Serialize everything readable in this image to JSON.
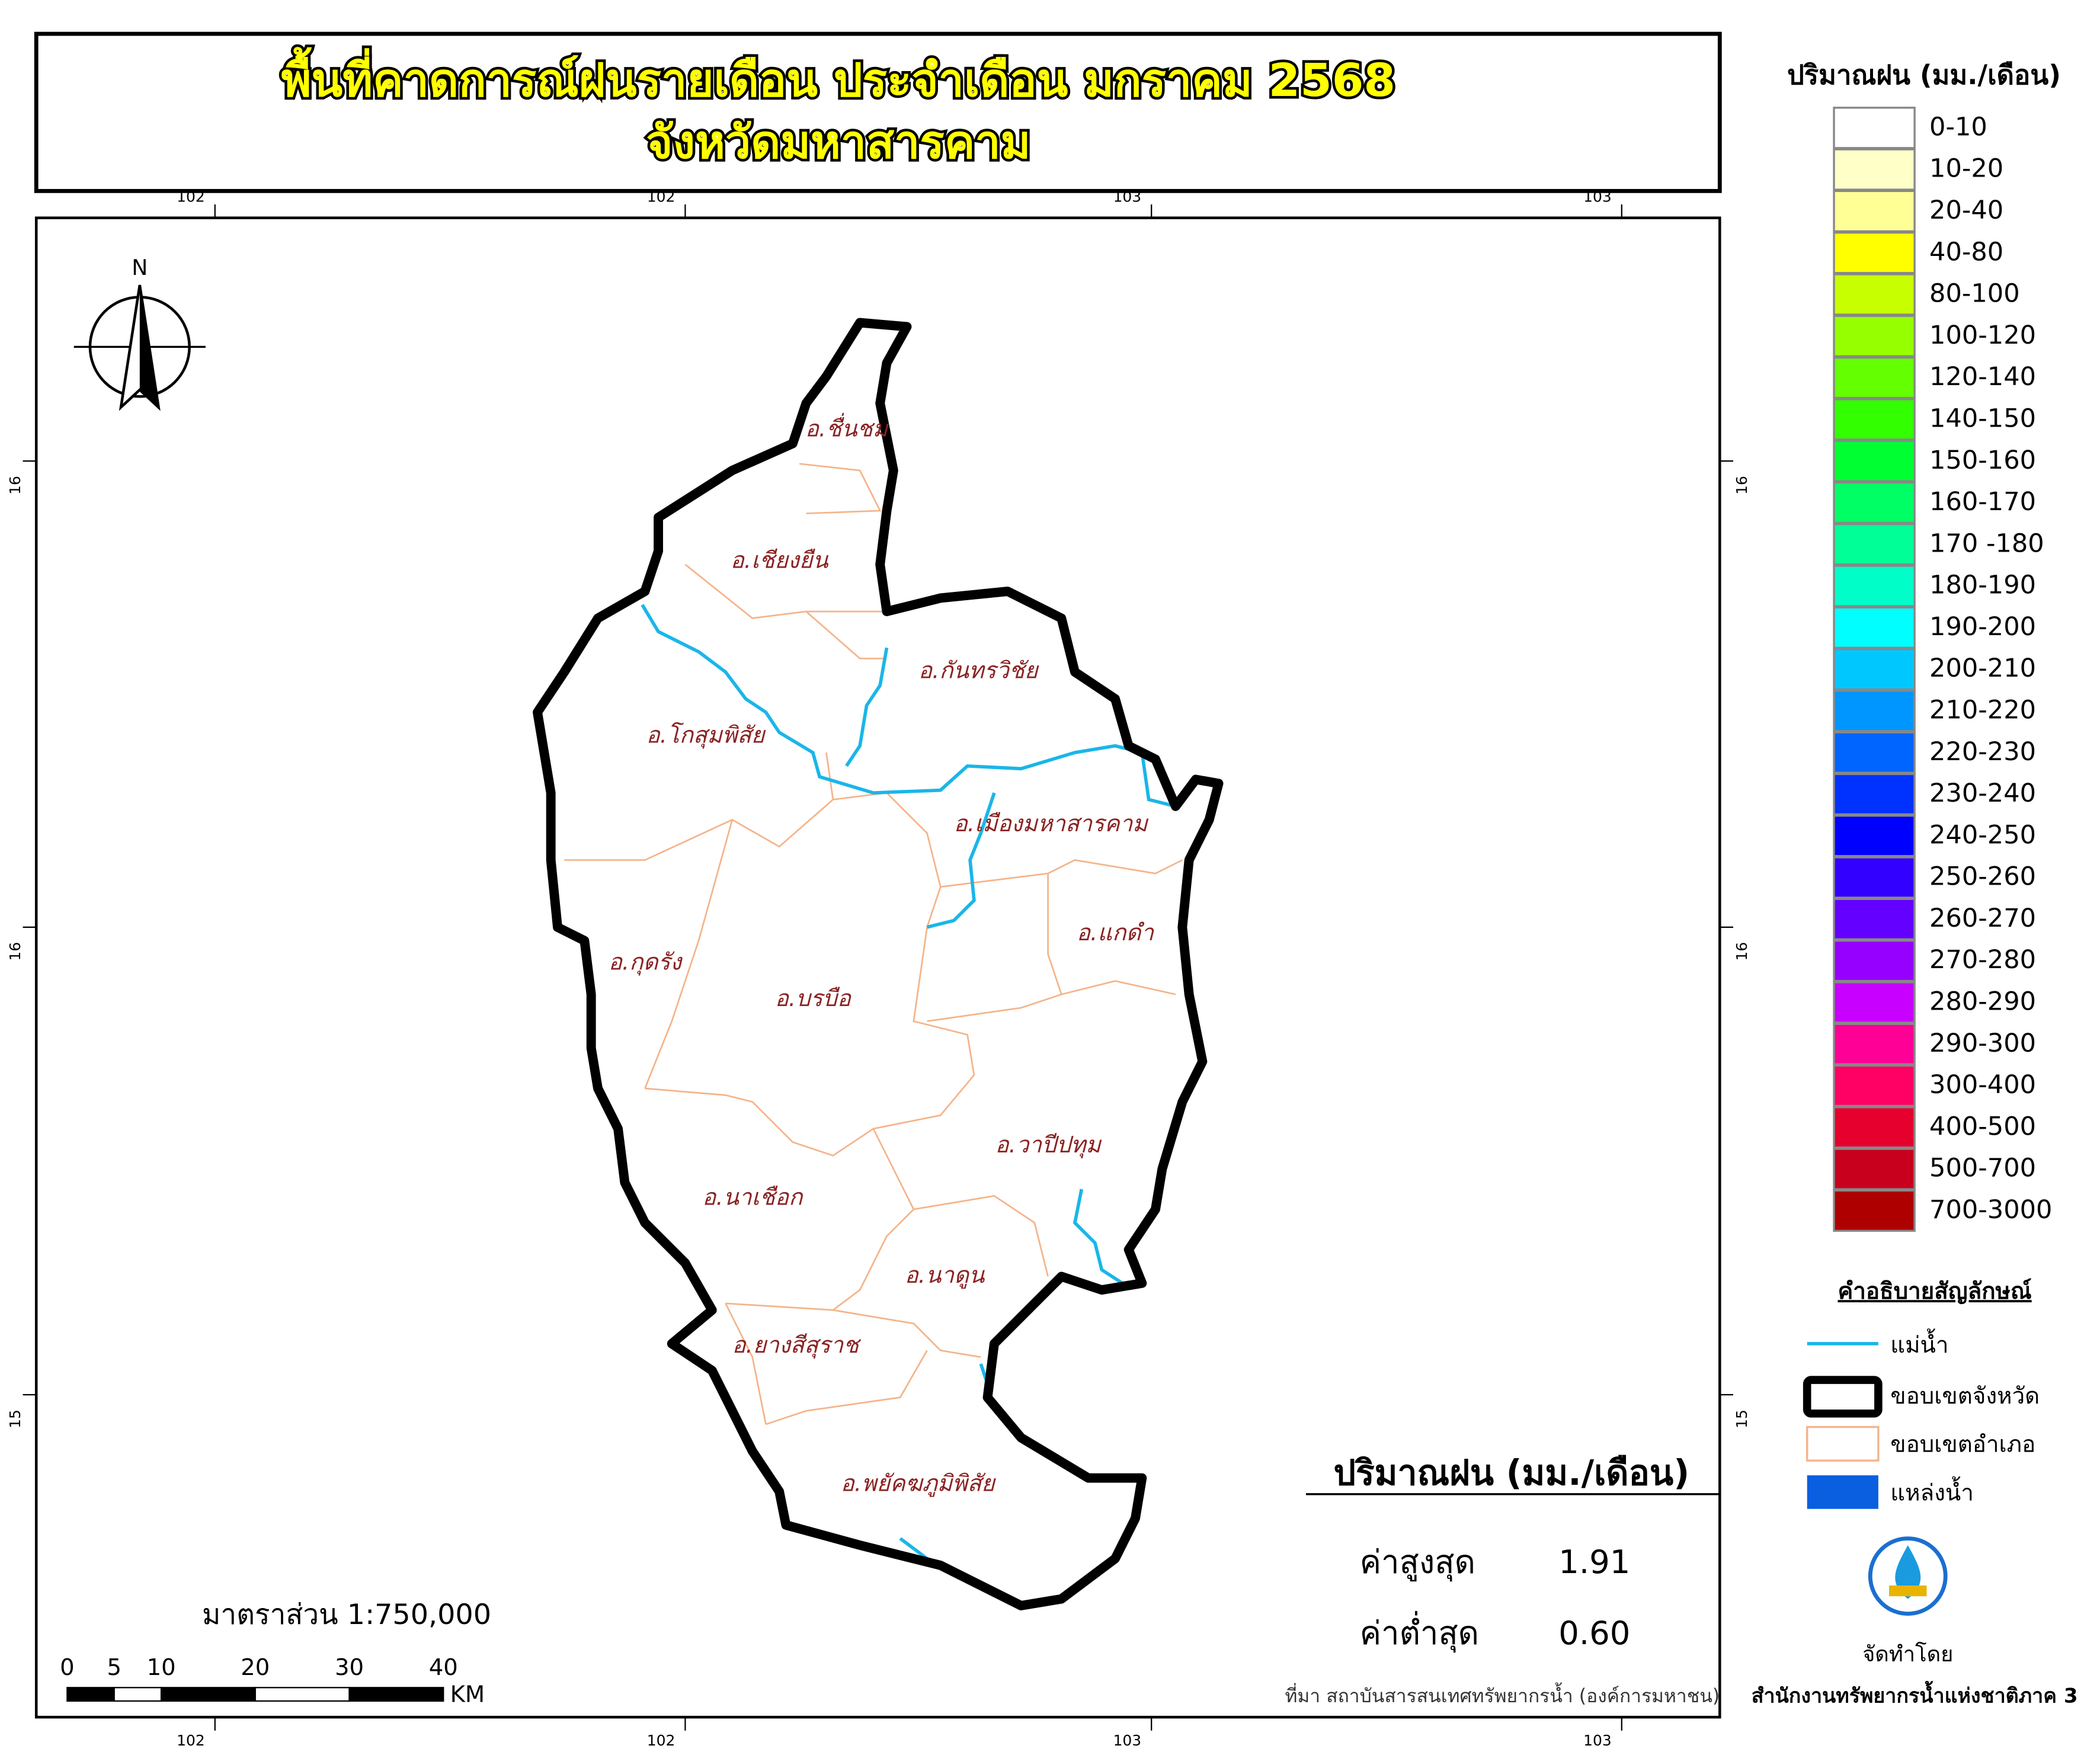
{
  "header": {
    "title_lines": [
      "พื้นที่คาดการณ์ฝนรายเดือน ประจำเดือน มกราคม 2568",
      "จังหวัดมหาสารคาม"
    ]
  },
  "graticule": {
    "lon_labels": [
      "102",
      "102",
      "103",
      "103"
    ],
    "lat_labels": [
      "16",
      "16",
      "15"
    ]
  },
  "north_arrow": {
    "label": "N"
  },
  "districts": [
    "อ.ชื่นชม",
    "อ.เชียงยืน",
    "อ.กันทรวิชัย",
    "อ.โกสุมพิสัย",
    "อ.เมืองมหาสารคาม",
    "อ.แกดำ",
    "อ.กุดรัง",
    "อ.บรบือ",
    "อ.วาปีปทุม",
    "อ.นาเชือก",
    "อ.นาดูน",
    "อ.ยางสีสุราช",
    "อ.พยัคฆภูมิพิสัย"
  ],
  "rain_legend": {
    "title": "ปริมาณฝน (มม./เดือน)",
    "classes": [
      {
        "label": "0-10",
        "color": "#ffffff"
      },
      {
        "label": "10-20",
        "color": "#ffffc8"
      },
      {
        "label": "20-40",
        "color": "#ffff96"
      },
      {
        "label": "40-80",
        "color": "#ffff00"
      },
      {
        "label": "80-100",
        "color": "#c8ff00"
      },
      {
        "label": "100-120",
        "color": "#96ff00"
      },
      {
        "label": "120-140",
        "color": "#64ff00"
      },
      {
        "label": "140-150",
        "color": "#32ff00"
      },
      {
        "label": "150-160",
        "color": "#00ff32"
      },
      {
        "label": "160-170",
        "color": "#00ff64"
      },
      {
        "label": "170 -180",
        "color": "#00ff96"
      },
      {
        "label": "180-190",
        "color": "#00ffc8"
      },
      {
        "label": "190-200",
        "color": "#00ffff"
      },
      {
        "label": "200-210",
        "color": "#00c8ff"
      },
      {
        "label": "210-220",
        "color": "#0096ff"
      },
      {
        "label": "220-230",
        "color": "#0064ff"
      },
      {
        "label": "230-240",
        "color": "#0032ff"
      },
      {
        "label": "240-250",
        "color": "#0000ff"
      },
      {
        "label": "250-260",
        "color": "#3200ff"
      },
      {
        "label": "260-270",
        "color": "#6400ff"
      },
      {
        "label": "270-280",
        "color": "#9600ff"
      },
      {
        "label": "280-290",
        "color": "#c800ff"
      },
      {
        "label": "290-300",
        "color": "#ff0096"
      },
      {
        "label": "300-400",
        "color": "#ff0064"
      },
      {
        "label": "400-500",
        "color": "#e6002d"
      },
      {
        "label": "500-700",
        "color": "#c8001e"
      },
      {
        "label": "700-3000",
        "color": "#af0000"
      }
    ]
  },
  "symbol_legend": {
    "title": "คำอธิบายสัญลักษณ์",
    "items": [
      "แม่น้ำ",
      "ขอบเขตจังหวัด",
      "ขอบเขตอำเภอ",
      "แหล่งน้ำ"
    ]
  },
  "stats": {
    "title": "ปริมาณฝน (มม./เดือน)",
    "max_label": "ค่าสูงสุด",
    "max_value": 1.91,
    "min_label": "ค่าต่ำสุด",
    "min_value": {
      "value": 0.6,
      "label": "0.60"
    }
  },
  "scale": {
    "text": "มาตราส่วน 1:750,000",
    "ticks": [
      0,
      5,
      10,
      20,
      30,
      40
    ],
    "unit": "KM"
  },
  "footer": {
    "source": "ที่มา  สถาบันสารสนเทศทรัพยากรน้ำ (องค์การมหาชน)",
    "made_by": "จัดทำโดย",
    "agency": "สำนักงานทรัพยากรน้ำแห่งชาติภาค 3"
  }
}
